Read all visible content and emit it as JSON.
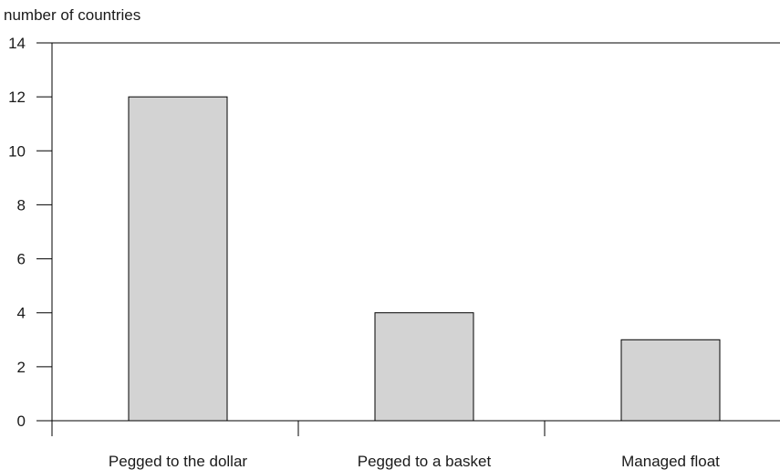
{
  "chart_data": {
    "type": "bar",
    "title": "",
    "ylabel": "number of countries",
    "xlabel": "",
    "categories": [
      "Pegged to the dollar",
      "Pegged to a basket",
      "Managed float"
    ],
    "values": [
      12,
      4,
      3
    ],
    "ylim": [
      0,
      14
    ],
    "yticks": [
      "0",
      "2",
      "4",
      "6",
      "8",
      "10",
      "12",
      "14"
    ],
    "grid": false,
    "legend": "none",
    "colors": {
      "bar_fill": "#d3d3d3",
      "bar_stroke": "#000000",
      "axis": "#000000"
    }
  }
}
